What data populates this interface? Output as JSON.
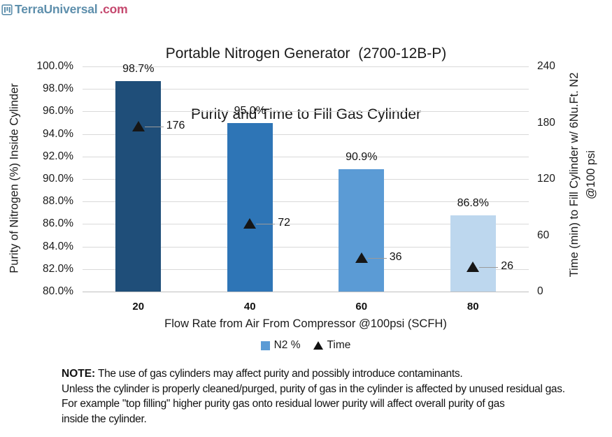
{
  "logo": {
    "brand": "TerraUniversal",
    "tld": ".com",
    "brand_color": "#5E8FAC",
    "tld_color": "#C5486E"
  },
  "title": {
    "line1": "Portable Nitrogen Generator  (2700-12B-P)",
    "line2": "Purity and Time to Fill Gas Cylinder"
  },
  "chart_data": {
    "type": "bar",
    "categories": [
      "20",
      "40",
      "60",
      "80"
    ],
    "series": [
      {
        "name": "N2 %",
        "render": "bar",
        "axis": "left",
        "values": [
          98.7,
          95.0,
          90.9,
          86.8
        ],
        "data_labels": [
          "98.7%",
          "95.0%",
          "90.9%",
          "86.8%"
        ],
        "bar_colors": [
          "#1F4E79",
          "#2E75B6",
          "#5B9BD5",
          "#BDD7EE"
        ]
      },
      {
        "name": "Time",
        "render": "scatter",
        "marker": "triangle",
        "axis": "right",
        "values": [
          176,
          72,
          36,
          26
        ],
        "data_labels": [
          "176",
          "72",
          "36",
          "26"
        ],
        "marker_color": "#161616"
      }
    ],
    "xlabel": "Flow Rate from Air From Compressor @100psi (SCFH)",
    "left_axis": {
      "title": "Purity of Nitrogen (%) Inside Cylinder",
      "min": 80,
      "max": 100,
      "ticks": [
        "100.0%",
        "98.0%",
        "96.0%",
        "94.0%",
        "92.0%",
        "90.0%",
        "88.0%",
        "86.0%",
        "84.0%",
        "82.0%",
        "80.0%"
      ]
    },
    "right_axis": {
      "title_line1": "Time (min) to Fill Cylinder w/ 6Nu.Ft. N2",
      "title_line2": "@100 psi",
      "min": 0,
      "max": 240,
      "ticks": [
        "240",
        "180",
        "120",
        "60",
        "0"
      ]
    },
    "legend": {
      "position": "bottom",
      "items": [
        {
          "label": "N2 %",
          "marker": "square",
          "color": "#5B9BD5"
        },
        {
          "label": "Time",
          "marker": "triangle",
          "color": "#111111"
        }
      ]
    },
    "grid": true,
    "gridline_color": "#D9D9D9",
    "axis_line_color": "#C0C0C0"
  },
  "note": {
    "prefix": "NOTE:",
    "line1": " The use of gas cylinders may affect purity and possibly introduce contaminants.",
    "line2": "Unless the cylinder is properly cleaned/purged, purity of gas in the cylinder is affected by unused residual gas.",
    "line3": "For example \"top filling\" higher purity gas onto residual lower purity will affect overall purity of gas",
    "line4": "inside the cylinder."
  }
}
